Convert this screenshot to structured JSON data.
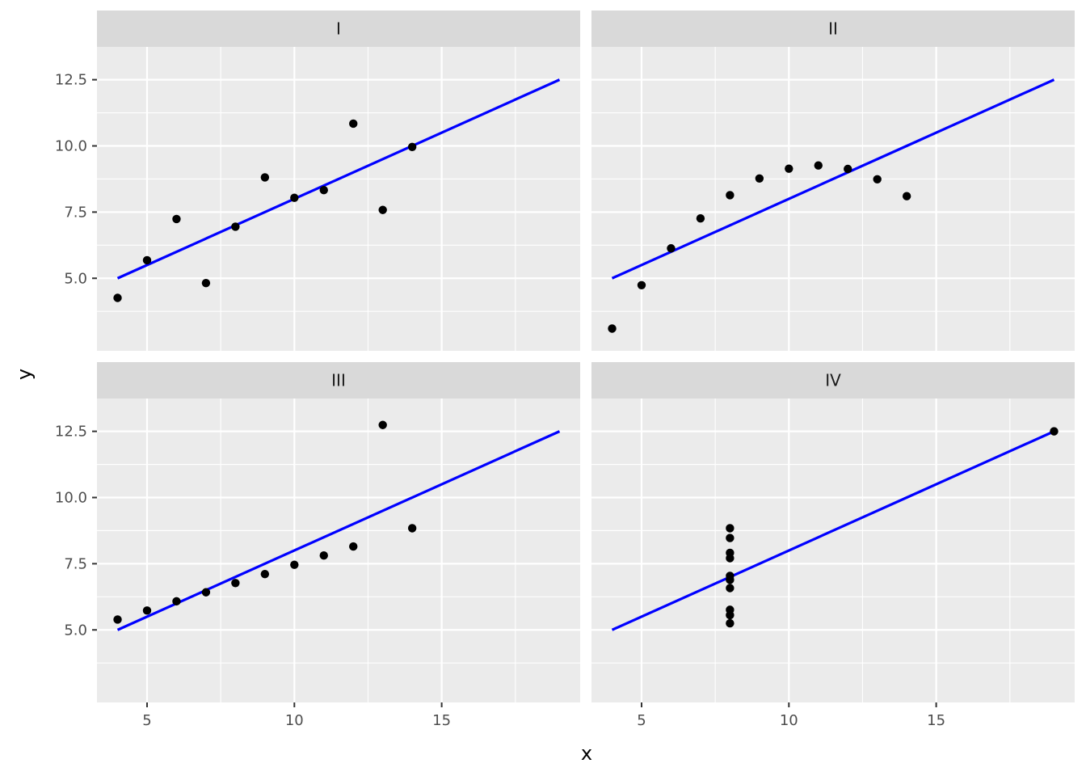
{
  "chart_data": {
    "type": "scatter",
    "xlabel": "x",
    "ylabel": "y",
    "xlim": [
      3.3,
      19.7
    ],
    "ylim": [
      2.26,
      13.74
    ],
    "x_ticks": [
      5,
      10,
      15
    ],
    "x_tick_labels": [
      "5",
      "10",
      "15"
    ],
    "y_ticks": [
      5,
      7.5,
      10,
      12.5
    ],
    "y_tick_labels": [
      "5.0",
      "7.5",
      "10.0",
      "12.5"
    ],
    "grid": true,
    "colors": {
      "panel_background": "#ebebeb",
      "strip_background": "#d9d9d9",
      "grid": "#ffffff",
      "points": "#000000",
      "fit_line": "#0000ff"
    },
    "fit_line": {
      "x": [
        4,
        19
      ],
      "intercept": 3.0,
      "slope": 0.5
    },
    "panels": [
      {
        "label": "I",
        "points": [
          {
            "x": 10,
            "y": 8.04
          },
          {
            "x": 8,
            "y": 6.95
          },
          {
            "x": 13,
            "y": 7.58
          },
          {
            "x": 9,
            "y": 8.81
          },
          {
            "x": 11,
            "y": 8.33
          },
          {
            "x": 14,
            "y": 9.96
          },
          {
            "x": 6,
            "y": 7.24
          },
          {
            "x": 4,
            "y": 4.26
          },
          {
            "x": 12,
            "y": 10.84
          },
          {
            "x": 7,
            "y": 4.82
          },
          {
            "x": 5,
            "y": 5.68
          }
        ]
      },
      {
        "label": "II",
        "points": [
          {
            "x": 10,
            "y": 9.14
          },
          {
            "x": 8,
            "y": 8.14
          },
          {
            "x": 13,
            "y": 8.74
          },
          {
            "x": 9,
            "y": 8.77
          },
          {
            "x": 11,
            "y": 9.26
          },
          {
            "x": 14,
            "y": 8.1
          },
          {
            "x": 6,
            "y": 6.13
          },
          {
            "x": 4,
            "y": 3.1
          },
          {
            "x": 12,
            "y": 9.13
          },
          {
            "x": 7,
            "y": 7.26
          },
          {
            "x": 5,
            "y": 4.74
          }
        ]
      },
      {
        "label": "III",
        "points": [
          {
            "x": 10,
            "y": 7.46
          },
          {
            "x": 8,
            "y": 6.77
          },
          {
            "x": 13,
            "y": 12.74
          },
          {
            "x": 9,
            "y": 7.11
          },
          {
            "x": 11,
            "y": 7.81
          },
          {
            "x": 14,
            "y": 8.84
          },
          {
            "x": 6,
            "y": 6.08
          },
          {
            "x": 4,
            "y": 5.39
          },
          {
            "x": 12,
            "y": 8.15
          },
          {
            "x": 7,
            "y": 6.42
          },
          {
            "x": 5,
            "y": 5.73
          }
        ]
      },
      {
        "label": "IV",
        "points": [
          {
            "x": 8,
            "y": 6.58
          },
          {
            "x": 8,
            "y": 5.76
          },
          {
            "x": 8,
            "y": 7.71
          },
          {
            "x": 8,
            "y": 8.84
          },
          {
            "x": 8,
            "y": 8.47
          },
          {
            "x": 8,
            "y": 7.04
          },
          {
            "x": 8,
            "y": 5.25
          },
          {
            "x": 19,
            "y": 12.5
          },
          {
            "x": 8,
            "y": 5.56
          },
          {
            "x": 8,
            "y": 7.91
          },
          {
            "x": 8,
            "y": 6.89
          }
        ]
      }
    ]
  }
}
